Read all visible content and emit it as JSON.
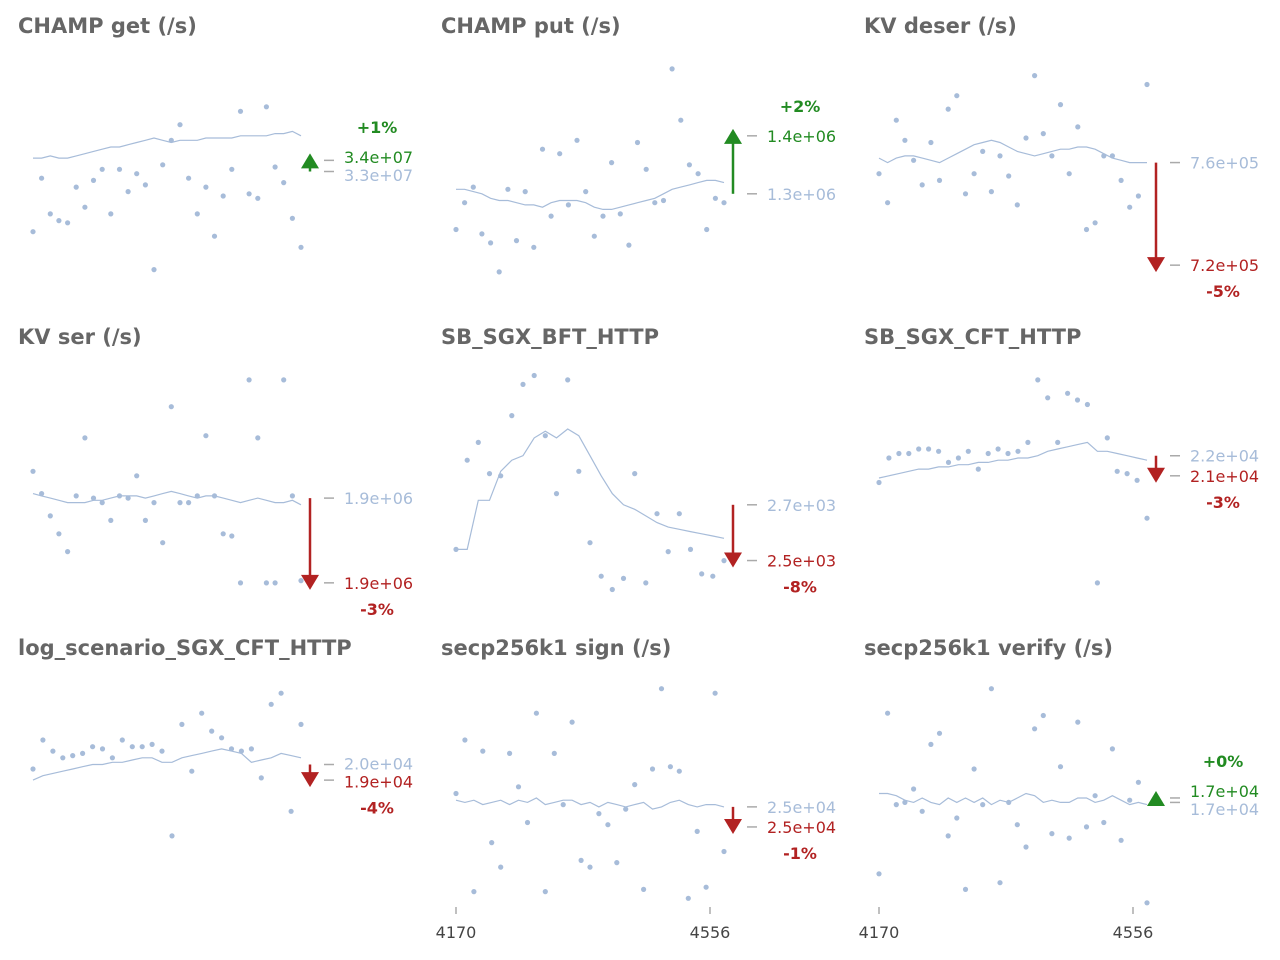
{
  "colors": {
    "points": "#a7bcd9",
    "line": "#a7bcd9",
    "up": "#228b22",
    "down": "#b22222",
    "title": "#666666",
    "baseline_label": "#a7bcd9",
    "tick": "#444444"
  },
  "x_ticks": [
    "4170",
    "4556"
  ],
  "chart_data": [
    {
      "type": "scatter",
      "title": "CHAMP get (/s)",
      "points": [
        0.23,
        0.47,
        0.31,
        0.28,
        0.27,
        0.43,
        0.34,
        0.46,
        0.51,
        0.31,
        0.51,
        0.41,
        0.49,
        0.44,
        0.06,
        0.53,
        0.64,
        0.71,
        0.47,
        0.31,
        0.43,
        0.21,
        0.39,
        0.51,
        0.77,
        0.4,
        0.38,
        0.79,
        0.52,
        0.45,
        0.29,
        0.16
      ],
      "line": [
        0.56,
        0.56,
        0.57,
        0.56,
        0.56,
        0.57,
        0.58,
        0.59,
        0.6,
        0.61,
        0.61,
        0.62,
        0.63,
        0.64,
        0.65,
        0.64,
        0.63,
        0.64,
        0.64,
        0.64,
        0.65,
        0.65,
        0.65,
        0.65,
        0.66,
        0.66,
        0.66,
        0.66,
        0.67,
        0.67,
        0.68,
        0.66
      ],
      "baseline": {
        "label": "3.3e+07",
        "level": 0.5
      },
      "current": {
        "label": "3.4e+07",
        "level": 0.55
      },
      "change": {
        "label": "+1%",
        "dir": "up"
      }
    },
    {
      "type": "scatter",
      "title": "CHAMP put (/s)",
      "points": [
        0.24,
        0.36,
        0.43,
        0.22,
        0.18,
        0.05,
        0.42,
        0.19,
        0.41,
        0.16,
        0.6,
        0.3,
        0.58,
        0.35,
        0.64,
        0.41,
        0.21,
        0.3,
        0.54,
        0.31,
        0.17,
        0.63,
        0.51,
        0.36,
        0.37,
        0.96,
        0.73,
        0.53,
        0.49,
        0.24,
        0.38,
        0.36
      ],
      "line": [
        0.42,
        0.42,
        0.41,
        0.4,
        0.38,
        0.37,
        0.37,
        0.36,
        0.35,
        0.35,
        0.34,
        0.36,
        0.37,
        0.37,
        0.37,
        0.36,
        0.34,
        0.33,
        0.33,
        0.34,
        0.35,
        0.36,
        0.37,
        0.38,
        0.4,
        0.42,
        0.43,
        0.44,
        0.45,
        0.46,
        0.46,
        0.45
      ],
      "baseline": {
        "label": "1.3e+06",
        "level": 0.4
      },
      "current": {
        "label": "1.4e+06",
        "level": 0.66
      },
      "change": {
        "label": "+2%",
        "dir": "up"
      }
    },
    {
      "type": "scatter",
      "title": "KV deser (/s)",
      "points": [
        0.49,
        0.36,
        0.73,
        0.64,
        0.55,
        0.44,
        0.63,
        0.46,
        0.78,
        0.84,
        0.4,
        0.49,
        0.59,
        0.41,
        0.57,
        0.48,
        0.35,
        0.65,
        0.93,
        0.67,
        0.57,
        0.8,
        0.49,
        0.7,
        0.24,
        0.27,
        0.57,
        0.57,
        0.46,
        0.34,
        0.39,
        0.89
      ],
      "line": [
        0.56,
        0.54,
        0.56,
        0.57,
        0.57,
        0.56,
        0.55,
        0.54,
        0.56,
        0.58,
        0.6,
        0.62,
        0.63,
        0.64,
        0.63,
        0.61,
        0.59,
        0.58,
        0.57,
        0.58,
        0.59,
        0.6,
        0.6,
        0.61,
        0.61,
        0.6,
        0.58,
        0.56,
        0.55,
        0.54,
        0.54,
        0.54
      ],
      "baseline": {
        "label": "7.6e+05",
        "level": 0.54
      },
      "current": {
        "label": "7.2e+05",
        "level": 0.08
      },
      "change": {
        "label": "-5%",
        "dir": "down"
      }
    },
    {
      "type": "scatter",
      "title": "KV ser (/s)",
      "points": [
        0.55,
        0.45,
        0.35,
        0.27,
        0.19,
        0.44,
        0.7,
        0.43,
        0.41,
        0.33,
        0.44,
        0.43,
        0.53,
        0.33,
        0.41,
        0.23,
        0.84,
        0.41,
        0.41,
        0.44,
        0.71,
        0.44,
        0.27,
        0.26,
        0.05,
        0.96,
        0.7,
        0.05,
        0.05,
        0.96,
        0.44,
        0.06
      ],
      "line": [
        0.45,
        0.44,
        0.43,
        0.42,
        0.41,
        0.41,
        0.41,
        0.42,
        0.42,
        0.43,
        0.44,
        0.44,
        0.44,
        0.43,
        0.44,
        0.45,
        0.46,
        0.45,
        0.44,
        0.43,
        0.44,
        0.44,
        0.43,
        0.42,
        0.41,
        0.42,
        0.43,
        0.42,
        0.41,
        0.41,
        0.42,
        0.4
      ],
      "baseline": {
        "label": "1.9e+06",
        "level": 0.43
      },
      "current": {
        "label": "1.9e+06",
        "level": 0.05
      },
      "change": {
        "label": "-3%",
        "dir": "down"
      }
    },
    {
      "type": "scatter",
      "title": "SB_SGX_BFT_HTTP",
      "points": [
        0.2,
        0.6,
        0.68,
        0.54,
        0.53,
        0.8,
        0.94,
        0.98,
        0.71,
        0.45,
        0.96,
        0.55,
        0.23,
        0.08,
        0.02,
        0.07,
        0.54,
        0.05,
        0.36,
        0.19,
        0.36,
        0.2,
        0.09,
        0.08,
        0.15
      ],
      "line": [
        0.2,
        0.2,
        0.42,
        0.42,
        0.55,
        0.6,
        0.62,
        0.7,
        0.73,
        0.7,
        0.74,
        0.71,
        0.62,
        0.53,
        0.45,
        0.4,
        0.38,
        0.35,
        0.32,
        0.3,
        0.29,
        0.28,
        0.27,
        0.26,
        0.25
      ],
      "baseline": {
        "label": "2.7e+03",
        "level": 0.4
      },
      "current": {
        "label": "2.5e+03",
        "level": 0.15
      },
      "change": {
        "label": "-8%",
        "dir": "down"
      }
    },
    {
      "type": "scatter",
      "title": "SB_SGX_CFT_HTTP",
      "points": [
        0.5,
        0.61,
        0.63,
        0.63,
        0.65,
        0.65,
        0.64,
        0.59,
        0.61,
        0.64,
        0.56,
        0.63,
        0.65,
        0.63,
        0.64,
        0.68,
        0.96,
        0.88,
        0.68,
        0.9,
        0.87,
        0.85,
        0.05,
        0.7,
        0.55,
        0.54,
        0.51,
        0.34
      ],
      "line": [
        0.52,
        0.53,
        0.54,
        0.55,
        0.56,
        0.56,
        0.57,
        0.57,
        0.58,
        0.58,
        0.59,
        0.59,
        0.6,
        0.6,
        0.61,
        0.61,
        0.62,
        0.64,
        0.65,
        0.66,
        0.67,
        0.68,
        0.64,
        0.64,
        0.63,
        0.62,
        0.61,
        0.6
      ],
      "baseline": {
        "label": "2.2e+04",
        "level": 0.62
      },
      "current": {
        "label": "2.1e+04",
        "level": 0.53
      },
      "change": {
        "label": "-3%",
        "dir": "down"
      }
    },
    {
      "type": "scatter",
      "title": "log_scenario_SGX_CFT_HTTP",
      "points": [
        0.61,
        0.74,
        0.69,
        0.66,
        0.67,
        0.68,
        0.71,
        0.7,
        0.66,
        0.74,
        0.71,
        0.71,
        0.72,
        0.69,
        0.31,
        0.81,
        0.6,
        0.86,
        0.78,
        0.75,
        0.7,
        0.69,
        0.7,
        0.57,
        0.9,
        0.95,
        0.42,
        0.81
      ],
      "line": [
        0.56,
        0.58,
        0.59,
        0.6,
        0.61,
        0.62,
        0.63,
        0.63,
        0.64,
        0.64,
        0.65,
        0.66,
        0.66,
        0.64,
        0.64,
        0.66,
        0.67,
        0.68,
        0.69,
        0.7,
        0.69,
        0.68,
        0.64,
        0.65,
        0.66,
        0.68,
        0.67,
        0.66
      ],
      "baseline": {
        "label": "2.0e+04",
        "level": 0.63
      },
      "current": {
        "label": "1.9e+04",
        "level": 0.56
      },
      "change": {
        "label": "-4%",
        "dir": "down"
      }
    },
    {
      "type": "scatter",
      "title": "secp256k1 sign (/s)",
      "points": [
        0.5,
        0.74,
        0.06,
        0.69,
        0.28,
        0.17,
        0.68,
        0.53,
        0.37,
        0.86,
        0.06,
        0.68,
        0.45,
        0.82,
        0.2,
        0.17,
        0.41,
        0.36,
        0.19,
        0.43,
        0.54,
        0.07,
        0.61,
        0.97,
        0.62,
        0.6,
        0.03,
        0.33,
        0.08,
        0.95,
        0.24
      ],
      "line": [
        0.47,
        0.46,
        0.47,
        0.45,
        0.46,
        0.47,
        0.45,
        0.47,
        0.46,
        0.48,
        0.45,
        0.46,
        0.47,
        0.47,
        0.45,
        0.46,
        0.44,
        0.46,
        0.45,
        0.44,
        0.45,
        0.46,
        0.43,
        0.44,
        0.46,
        0.47,
        0.45,
        0.44,
        0.45,
        0.45,
        0.44
      ],
      "baseline": {
        "label": "2.5e+04",
        "level": 0.44
      },
      "current": {
        "label": "2.5e+04",
        "level": 0.35
      },
      "change": {
        "label": "-1%",
        "dir": "down"
      }
    },
    {
      "type": "scatter",
      "title": "secp256k1 verify (/s)",
      "points": [
        0.14,
        0.86,
        0.45,
        0.46,
        0.52,
        0.42,
        0.72,
        0.77,
        0.31,
        0.39,
        0.07,
        0.61,
        0.45,
        0.97,
        0.1,
        0.46,
        0.36,
        0.26,
        0.79,
        0.85,
        0.32,
        0.62,
        0.3,
        0.82,
        0.35,
        0.49,
        0.37,
        0.7,
        0.29,
        0.47,
        0.55,
        0.01
      ],
      "line": [
        0.5,
        0.5,
        0.49,
        0.47,
        0.46,
        0.48,
        0.46,
        0.45,
        0.48,
        0.46,
        0.48,
        0.46,
        0.48,
        0.45,
        0.47,
        0.46,
        0.48,
        0.5,
        0.49,
        0.46,
        0.47,
        0.46,
        0.46,
        0.48,
        0.48,
        0.46,
        0.47,
        0.49,
        0.47,
        0.45,
        0.46,
        0.45
      ],
      "baseline": {
        "label": "1.7e+04",
        "level": 0.46
      },
      "current": {
        "label": "1.7e+04",
        "level": 0.48
      },
      "change": {
        "label": "+0%",
        "dir": "up"
      }
    }
  ]
}
